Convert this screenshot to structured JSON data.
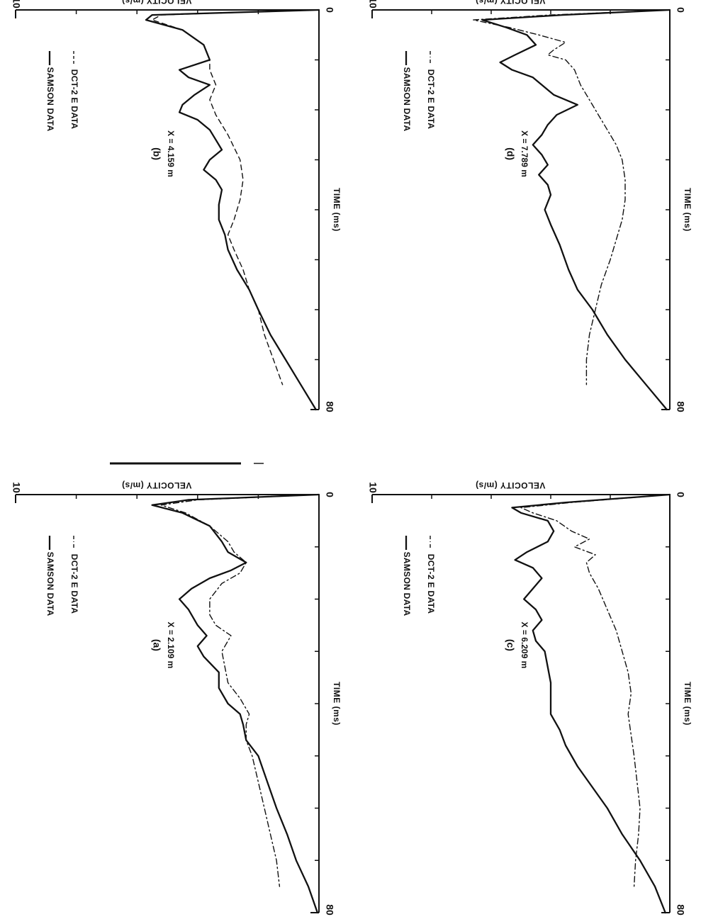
{
  "chart_data": [
    {
      "id": "a",
      "type": "line",
      "panel_label": "(a)",
      "position_text": "X = 2.109 m",
      "xlabel": "TIME (ms)",
      "ylabel": "VELOCITY (m/s)",
      "xlim": [
        0,
        80
      ],
      "ylim": [
        0,
        10
      ],
      "x_ticks": [
        "0",
        "80"
      ],
      "y_ticks": [
        "0",
        "10"
      ],
      "legend_position": "top-right",
      "series": [
        {
          "name": "SAMSON DATA",
          "style": "solid",
          "points": [
            [
              0,
              0
            ],
            [
              1,
              4.3
            ],
            [
              2,
              5.5
            ],
            [
              3.5,
              4.5
            ],
            [
              6,
              3.6
            ],
            [
              9,
              3.2
            ],
            [
              11,
              3.0
            ],
            [
              13,
              2.4
            ],
            [
              14.5,
              2.9
            ],
            [
              16,
              3.6
            ],
            [
              18,
              4.2
            ],
            [
              20,
              4.6
            ],
            [
              22,
              4.3
            ],
            [
              25,
              4.0
            ],
            [
              27,
              3.7
            ],
            [
              29,
              4.0
            ],
            [
              31,
              3.8
            ],
            [
              34,
              3.3
            ],
            [
              37,
              3.3
            ],
            [
              40,
              3.0
            ],
            [
              42,
              2.6
            ],
            [
              44,
              2.5
            ],
            [
              47,
              2.4
            ],
            [
              50,
              2.0
            ],
            [
              55,
              1.7
            ],
            [
              60,
              1.4
            ],
            [
              65,
              1.05
            ],
            [
              70,
              0.75
            ],
            [
              75,
              0.35
            ],
            [
              80,
              0.05
            ]
          ]
        },
        {
          "name": "DCT-2 E DATA",
          "style": "dashdot",
          "points": [
            [
              0,
              0
            ],
            [
              1,
              4.0
            ],
            [
              2,
              5.2
            ],
            [
              3.5,
              4.4
            ],
            [
              6,
              3.6
            ],
            [
              9,
              3.0
            ],
            [
              11,
              2.8
            ],
            [
              13,
              2.4
            ],
            [
              15,
              2.6
            ],
            [
              17,
              3.2
            ],
            [
              20,
              3.6
            ],
            [
              23,
              3.6
            ],
            [
              25,
              3.4
            ],
            [
              27,
              2.9
            ],
            [
              30,
              3.2
            ],
            [
              33,
              3.1
            ],
            [
              36,
              3.0
            ],
            [
              39,
              2.6
            ],
            [
              42,
              2.3
            ],
            [
              44,
              2.4
            ],
            [
              47,
              2.4
            ],
            [
              50,
              2.2
            ],
            [
              55,
              2.0
            ],
            [
              60,
              1.8
            ],
            [
              65,
              1.6
            ],
            [
              70,
              1.4
            ],
            [
              75,
              1.3
            ]
          ]
        }
      ]
    },
    {
      "id": "b",
      "type": "line",
      "panel_label": "(b)",
      "position_text": "X = 4.159 m",
      "xlabel": "TIME (ms)",
      "ylabel": "VELOCITY (m/s)",
      "xlim": [
        0,
        80
      ],
      "ylim": [
        0,
        10
      ],
      "x_ticks": [
        "0",
        "80"
      ],
      "y_ticks": [
        "0",
        "10"
      ],
      "legend_position": "top-right",
      "series": [
        {
          "name": "SAMSON DATA",
          "style": "solid",
          "points": [
            [
              0,
              0
            ],
            [
              1,
              5.5
            ],
            [
              2,
              5.7
            ],
            [
              4,
              4.5
            ],
            [
              7,
              3.8
            ],
            [
              10,
              3.6
            ],
            [
              12,
              4.6
            ],
            [
              13.5,
              4.3
            ],
            [
              15,
              3.6
            ],
            [
              17,
              4.1
            ],
            [
              19,
              4.5
            ],
            [
              20.5,
              4.6
            ],
            [
              22,
              4.0
            ],
            [
              24,
              3.6
            ],
            [
              26,
              3.4
            ],
            [
              28,
              3.2
            ],
            [
              30,
              3.6
            ],
            [
              32,
              3.8
            ],
            [
              34,
              3.4
            ],
            [
              36,
              3.2
            ],
            [
              39,
              3.3
            ],
            [
              42,
              3.3
            ],
            [
              45,
              3.1
            ],
            [
              48,
              3.0
            ],
            [
              52,
              2.7
            ],
            [
              56,
              2.3
            ],
            [
              60,
              2.0
            ],
            [
              65,
              1.6
            ],
            [
              70,
              1.1
            ],
            [
              75,
              0.6
            ],
            [
              80,
              0.1
            ]
          ]
        },
        {
          "name": "DCT-2 E DATA",
          "style": "dashed",
          "points": [
            [
              0,
              0
            ],
            [
              1,
              5.2
            ],
            [
              2,
              5.5
            ],
            [
              4,
              4.5
            ],
            [
              7,
              3.8
            ],
            [
              10,
              3.6
            ],
            [
              12,
              3.6
            ],
            [
              15,
              3.4
            ],
            [
              18,
              3.6
            ],
            [
              21,
              3.4
            ],
            [
              25,
              3.0
            ],
            [
              30,
              2.6
            ],
            [
              34,
              2.5
            ],
            [
              38,
              2.6
            ],
            [
              42,
              2.8
            ],
            [
              45,
              3.0
            ],
            [
              48,
              2.8
            ],
            [
              52,
              2.5
            ],
            [
              56,
              2.3
            ],
            [
              60,
              2.0
            ],
            [
              65,
              1.8
            ],
            [
              70,
              1.5
            ],
            [
              75,
              1.2
            ]
          ]
        }
      ]
    },
    {
      "id": "c",
      "type": "line",
      "panel_label": "(c)",
      "position_text": "X = 6.209 m",
      "xlabel": "TIME (ms)",
      "ylabel": "VELOCITY (m/s)",
      "xlim": [
        0,
        80
      ],
      "ylim": [
        0,
        10
      ],
      "x_ticks": [
        "0",
        "80"
      ],
      "y_ticks": [
        "0",
        "10"
      ],
      "legend_position": "top-right",
      "series": [
        {
          "name": "SAMSON DATA",
          "style": "solid",
          "points": [
            [
              0,
              0
            ],
            [
              1.5,
              3.5
            ],
            [
              2.5,
              5.3
            ],
            [
              3.5,
              5.0
            ],
            [
              5,
              4.1
            ],
            [
              7,
              3.9
            ],
            [
              9,
              4.1
            ],
            [
              11,
              4.8
            ],
            [
              12.5,
              5.2
            ],
            [
              14,
              4.6
            ],
            [
              16,
              4.3
            ],
            [
              18,
              4.6
            ],
            [
              20,
              4.9
            ],
            [
              22,
              4.5
            ],
            [
              24,
              4.3
            ],
            [
              26,
              4.6
            ],
            [
              28,
              4.5
            ],
            [
              30,
              4.2
            ],
            [
              33,
              4.1
            ],
            [
              36,
              4.0
            ],
            [
              39,
              4.0
            ],
            [
              42,
              4.0
            ],
            [
              45,
              3.7
            ],
            [
              48,
              3.5
            ],
            [
              52,
              3.1
            ],
            [
              56,
              2.6
            ],
            [
              60,
              2.1
            ],
            [
              65,
              1.6
            ],
            [
              70,
              1.0
            ],
            [
              75,
              0.5
            ],
            [
              80,
              0.15
            ]
          ]
        },
        {
          "name": "DCT-2 E DATA",
          "style": "dashdot",
          "points": [
            [
              0,
              0
            ],
            [
              1.5,
              3.3
            ],
            [
              2.5,
              5.0
            ],
            [
              3.5,
              4.6
            ],
            [
              5,
              3.8
            ],
            [
              7,
              3.3
            ],
            [
              8.5,
              2.7
            ],
            [
              10,
              3.2
            ],
            [
              11.5,
              2.5
            ],
            [
              13,
              2.8
            ],
            [
              15,
              2.7
            ],
            [
              18,
              2.4
            ],
            [
              22,
              2.1
            ],
            [
              26,
              1.8
            ],
            [
              30,
              1.6
            ],
            [
              34,
              1.4
            ],
            [
              38,
              1.3
            ],
            [
              42,
              1.4
            ],
            [
              46,
              1.3
            ],
            [
              50,
              1.2
            ],
            [
              55,
              1.1
            ],
            [
              60,
              1.0
            ],
            [
              65,
              1.05
            ],
            [
              70,
              1.15
            ],
            [
              75,
              1.2
            ]
          ]
        }
      ]
    },
    {
      "id": "d",
      "type": "line",
      "panel_label": "(d)",
      "position_text": "X = 7.789 m",
      "xlabel": "TIME (ms)",
      "ylabel": "VELOCITY (m/s)",
      "xlim": [
        0,
        80
      ],
      "ylim": [
        0,
        10
      ],
      "x_ticks": [
        "0",
        "80"
      ],
      "y_ticks": [
        "0",
        "10"
      ],
      "legend_position": "top-right",
      "series": [
        {
          "name": "SAMSON DATA",
          "style": "solid",
          "points": [
            [
              0,
              0
            ],
            [
              1,
              3.6
            ],
            [
              2,
              6.3
            ],
            [
              3.5,
              5.5
            ],
            [
              5,
              4.8
            ],
            [
              7,
              4.5
            ],
            [
              9,
              5.2
            ],
            [
              10.5,
              5.7
            ],
            [
              12,
              5.3
            ],
            [
              13.5,
              4.6
            ],
            [
              15,
              4.3
            ],
            [
              17,
              3.9
            ],
            [
              19,
              3.1
            ],
            [
              21,
              3.8
            ],
            [
              23,
              4.1
            ],
            [
              25,
              4.3
            ],
            [
              27,
              4.6
            ],
            [
              29,
              4.3
            ],
            [
              31,
              4.1
            ],
            [
              33,
              4.4
            ],
            [
              35,
              4.1
            ],
            [
              37,
              4.0
            ],
            [
              40,
              4.2
            ],
            [
              43,
              4.0
            ],
            [
              47,
              3.7
            ],
            [
              52,
              3.4
            ],
            [
              56,
              3.1
            ],
            [
              60,
              2.6
            ],
            [
              65,
              2.1
            ],
            [
              70,
              1.5
            ],
            [
              75,
              0.8
            ],
            [
              80,
              0.1
            ]
          ]
        },
        {
          "name": "DCT-2 E DATA",
          "style": "dashdot",
          "points": [
            [
              0,
              0
            ],
            [
              1,
              4.0
            ],
            [
              2,
              6.6
            ],
            [
              3.5,
              5.4
            ],
            [
              5,
              4.4
            ],
            [
              6.5,
              3.5
            ],
            [
              8,
              3.9
            ],
            [
              9,
              4.1
            ],
            [
              10,
              3.5
            ],
            [
              12,
              3.2
            ],
            [
              15,
              3.0
            ],
            [
              18,
              2.7
            ],
            [
              21,
              2.4
            ],
            [
              24,
              2.1
            ],
            [
              27,
              1.8
            ],
            [
              30,
              1.6
            ],
            [
              34,
              1.5
            ],
            [
              38,
              1.5
            ],
            [
              42,
              1.6
            ],
            [
              46,
              1.8
            ],
            [
              50,
              2.0
            ],
            [
              55,
              2.3
            ],
            [
              60,
              2.5
            ],
            [
              65,
              2.7
            ],
            [
              70,
              2.8
            ],
            [
              75,
              2.8
            ]
          ]
        }
      ]
    }
  ]
}
